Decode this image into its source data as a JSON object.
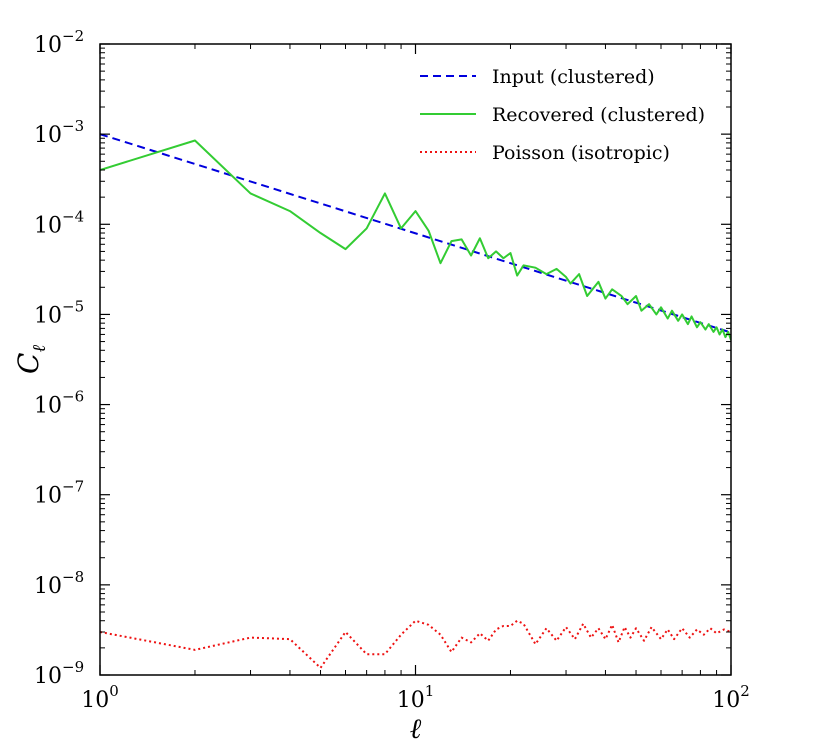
{
  "chart_data": {
    "type": "line",
    "xscale": "log",
    "yscale": "log",
    "xlim": [
      1,
      100
    ],
    "ylim": [
      1e-09,
      0.01
    ],
    "xlabel": "ℓ",
    "ylabel": "C",
    "ylabel_sub": "ℓ",
    "legend_position": "top-right",
    "x_ticks": [
      {
        "base": "10",
        "exp": "0",
        "value": 1
      },
      {
        "base": "10",
        "exp": "1",
        "value": 10
      },
      {
        "base": "10",
        "exp": "2",
        "value": 100
      }
    ],
    "y_ticks": [
      {
        "base": "10",
        "exp": "−9",
        "value": 1e-09
      },
      {
        "base": "10",
        "exp": "−8",
        "value": 1e-08
      },
      {
        "base": "10",
        "exp": "−7",
        "value": 1e-07
      },
      {
        "base": "10",
        "exp": "−6",
        "value": 1e-06
      },
      {
        "base": "10",
        "exp": "−5",
        "value": 1e-05
      },
      {
        "base": "10",
        "exp": "−4",
        "value": 0.0001
      },
      {
        "base": "10",
        "exp": "−3",
        "value": 0.001
      },
      {
        "base": "10",
        "exp": "−2",
        "value": 0.01
      }
    ],
    "series": [
      {
        "name": "Input (clustered)",
        "color": "#0000dd",
        "style": "dashed",
        "x": [
          1,
          100
        ],
        "y": [
          0.001,
          6.3e-06
        ]
      },
      {
        "name": "Recovered (clustered)",
        "color": "#33cc33",
        "style": "solid",
        "x": [
          1,
          2,
          3,
          4,
          5,
          6,
          7,
          8,
          9,
          10,
          11,
          12,
          13,
          14,
          15,
          16,
          17,
          18,
          19,
          20,
          21,
          22,
          24,
          26,
          28,
          30,
          31,
          33,
          35,
          38,
          40,
          42,
          45,
          47,
          50,
          52,
          55,
          58,
          60,
          63,
          65,
          68,
          70,
          73,
          75,
          78,
          80,
          83,
          85,
          88,
          90,
          92,
          94,
          96,
          98,
          100
        ],
        "y": [
          0.0004,
          0.00085,
          0.00022,
          0.00014,
          8e-05,
          5.3e-05,
          9e-05,
          0.00022,
          9e-05,
          0.00014,
          8.5e-05,
          3.7e-05,
          6.5e-05,
          6.8e-05,
          4.5e-05,
          7e-05,
          4.2e-05,
          5e-05,
          4.2e-05,
          4.8e-05,
          2.7e-05,
          3.5e-05,
          3.3e-05,
          2.8e-05,
          3.2e-05,
          2.6e-05,
          2.2e-05,
          2.8e-05,
          1.6e-05,
          2.3e-05,
          1.5e-05,
          1.9e-05,
          1.6e-05,
          1.3e-05,
          1.6e-05,
          1.1e-05,
          1.3e-05,
          1e-05,
          1.2e-05,
          9e-06,
          1.1e-05,
          8.5e-06,
          1e-05,
          7.8e-06,
          9.5e-06,
          7.2e-06,
          8.2e-06,
          6.8e-06,
          7.8e-06,
          6.4e-06,
          7.2e-06,
          6e-06,
          6.8e-06,
          5.6e-06,
          6.4e-06,
          5.2e-06
        ]
      },
      {
        "name": "Poisson (isotropic)",
        "color": "#ee1111",
        "style": "dotted",
        "x": [
          1,
          2,
          3,
          4,
          5,
          6,
          7,
          8,
          9,
          10,
          11,
          12,
          13,
          14,
          15,
          16,
          17,
          18,
          19,
          20,
          21,
          22,
          24,
          26,
          28,
          30,
          32,
          34,
          36,
          38,
          40,
          42,
          44,
          46,
          48,
          50,
          53,
          56,
          60,
          63,
          66,
          70,
          74,
          78,
          82,
          86,
          90,
          95,
          100
        ],
        "y": [
          3e-09,
          1.9e-09,
          2.6e-09,
          2.5e-09,
          1.2e-09,
          3e-09,
          1.7e-09,
          1.7e-09,
          2.8e-09,
          4e-09,
          3.6e-09,
          2.8e-09,
          1.8e-09,
          2.6e-09,
          2.3e-09,
          2.9e-09,
          2.4e-09,
          3.2e-09,
          3.5e-09,
          3.5e-09,
          4e-09,
          3.7e-09,
          2.2e-09,
          3.3e-09,
          2.4e-09,
          3.4e-09,
          2.5e-09,
          3.7e-09,
          2.6e-09,
          3.3e-09,
          2.5e-09,
          3.6e-09,
          2.3e-09,
          3.4e-09,
          2.6e-09,
          3.3e-09,
          2.4e-09,
          3.4e-09,
          2.5e-09,
          3.2e-09,
          2.5e-09,
          3.3e-09,
          2.6e-09,
          3.2e-09,
          2.8e-09,
          3.3e-09,
          2.9e-09,
          3.2e-09,
          3e-09
        ]
      }
    ]
  }
}
